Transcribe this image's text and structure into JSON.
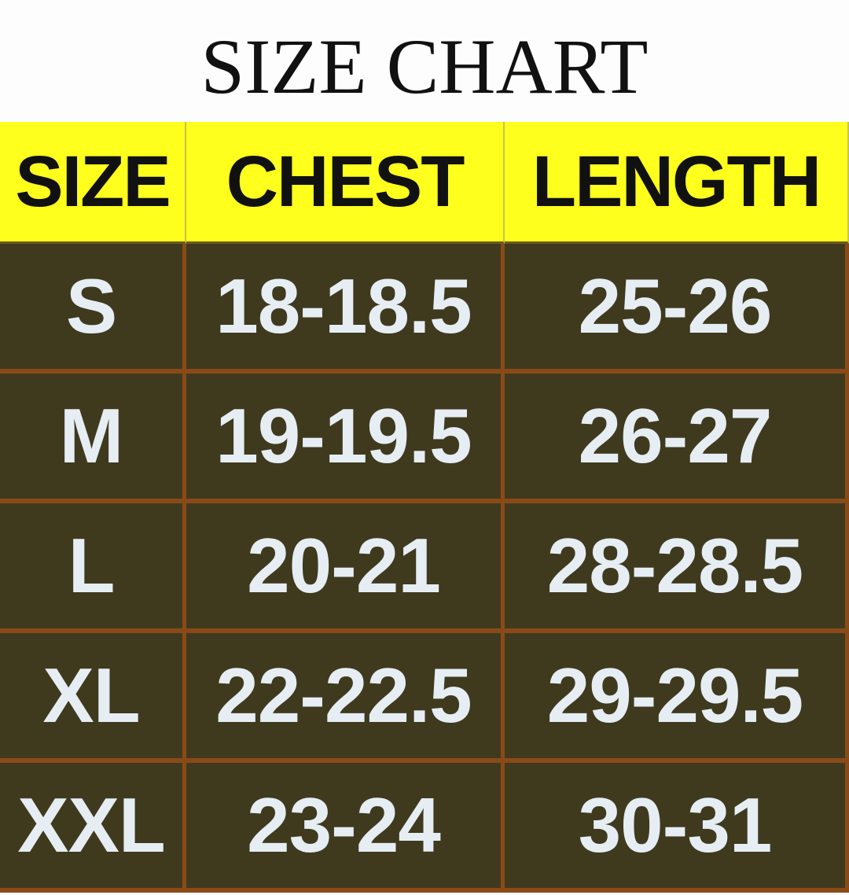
{
  "header": {
    "title": "SIZE CHART"
  },
  "table": {
    "columns": [
      "SIZE",
      "CHEST",
      "LENGTH"
    ],
    "rows": [
      [
        "S",
        "18-18.5",
        "25-26"
      ],
      [
        "M",
        "19-19.5",
        "26-27"
      ],
      [
        "L",
        "20-21",
        "28-28.5"
      ],
      [
        "XL",
        "22-22.5",
        "29-29.5"
      ],
      [
        "XXL",
        "23-24",
        "30-31"
      ]
    ]
  }
}
